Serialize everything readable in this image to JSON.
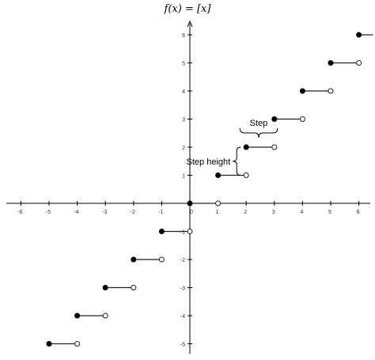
{
  "chart_data": {
    "type": "line",
    "title": "f(x) = [x]",
    "xlim": [
      -6.5,
      6.5
    ],
    "ylim": [
      -5.5,
      6.5
    ],
    "grid": false,
    "x_ticks": [
      "-6",
      "-5",
      "-4",
      "-3",
      "-2",
      "-1",
      "0",
      "1",
      "2",
      "3",
      "4",
      "5",
      "6"
    ],
    "y_ticks": [
      "6",
      "5",
      "4",
      "3",
      "2",
      "1",
      "0",
      "-1",
      "-2",
      "-3",
      "-4",
      "-5"
    ],
    "series": [
      {
        "segments": [
          {
            "x_start": -5,
            "x_end": -4,
            "y": -5
          },
          {
            "x_start": -4,
            "x_end": -3,
            "y": -4
          },
          {
            "x_start": -3,
            "x_end": -2,
            "y": -3
          },
          {
            "x_start": -2,
            "x_end": -1,
            "y": -2
          },
          {
            "x_start": -1,
            "x_end": 0,
            "y": -1
          },
          {
            "x_start": 0,
            "x_end": 1,
            "y": 0
          },
          {
            "x_start": 1,
            "x_end": 2,
            "y": 1
          },
          {
            "x_start": 2,
            "x_end": 3,
            "y": 2
          },
          {
            "x_start": 3,
            "x_end": 4,
            "y": 3
          },
          {
            "x_start": 4,
            "x_end": 5,
            "y": 4
          },
          {
            "x_start": 5,
            "x_end": 6,
            "y": 5
          },
          {
            "x_start": 6,
            "x_end": 6.5,
            "y": 6
          }
        ]
      }
    ],
    "annotations": {
      "step_label": "Step",
      "step_height_label": "Step height"
    }
  }
}
